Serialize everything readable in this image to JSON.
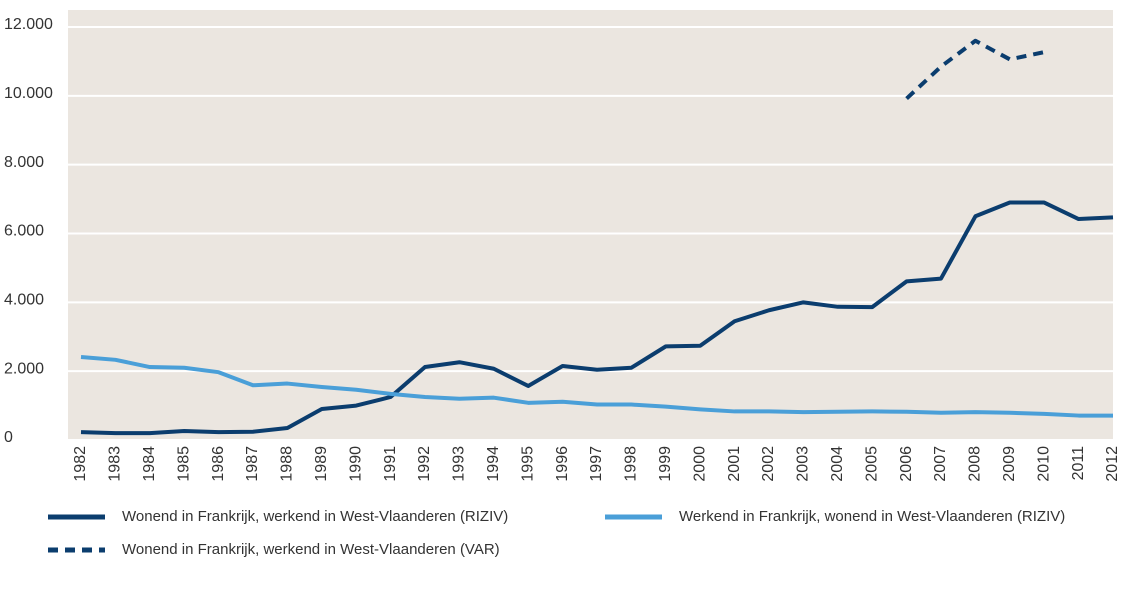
{
  "chart_data": {
    "type": "line",
    "categories": [
      "1982",
      "1983",
      "1984",
      "1985",
      "1986",
      "1987",
      "1988",
      "1989",
      "1990",
      "1991",
      "1992",
      "1993",
      "1994",
      "1995",
      "1996",
      "1997",
      "1998",
      "1999",
      "2000",
      "2001",
      "2002",
      "2003",
      "2004",
      "2005",
      "2006",
      "2007",
      "2008",
      "2009",
      "2010",
      "2011",
      "2012"
    ],
    "series": [
      {
        "name": "Wonend in Frankrijk, werkend in West-Vlaanderen (RIZIV)",
        "color": "#0b3d6e",
        "style": "solid",
        "values": [
          230,
          200,
          200,
          260,
          230,
          240,
          350,
          900,
          1000,
          1250,
          2120,
          2260,
          2070,
          1570,
          2150,
          2040,
          2100,
          2720,
          2740,
          3450,
          3770,
          4000,
          3870,
          3860,
          4610,
          4690,
          6500,
          6900,
          6900,
          6420,
          6470
        ]
      },
      {
        "name": "Werkend in Frankrijk, wonend in West-Vlaanderen (RIZIV)",
        "color": "#4a9fd8",
        "style": "solid",
        "values": [
          2410,
          2330,
          2120,
          2100,
          1970,
          1590,
          1640,
          1540,
          1460,
          1340,
          1250,
          1200,
          1230,
          1080,
          1110,
          1030,
          1030,
          970,
          890,
          830,
          830,
          810,
          820,
          830,
          820,
          790,
          810,
          790,
          760,
          710,
          710
        ]
      },
      {
        "name": "Wonend in Frankrijk, werkend in West-Vlaanderen (VAR)",
        "color": "#0b3d6e",
        "style": "dashed",
        "values": [
          null,
          null,
          null,
          null,
          null,
          null,
          null,
          null,
          null,
          null,
          null,
          null,
          null,
          null,
          null,
          null,
          null,
          null,
          null,
          null,
          null,
          null,
          null,
          null,
          9920,
          10850,
          11600,
          11060,
          11270,
          null,
          null
        ]
      }
    ],
    "ylim": [
      0,
      12000
    ],
    "yticks": [
      0,
      {
        "value": 2000,
        "label": "2.000"
      },
      {
        "value": 4000,
        "label": "4.000"
      },
      {
        "value": 6000,
        "label": "6.000"
      },
      {
        "value": 8000,
        "label": "8.000"
      },
      {
        "value": 10000,
        "label": "10.000"
      },
      {
        "value": 12000,
        "label": "12.000"
      }
    ],
    "grid": true
  }
}
